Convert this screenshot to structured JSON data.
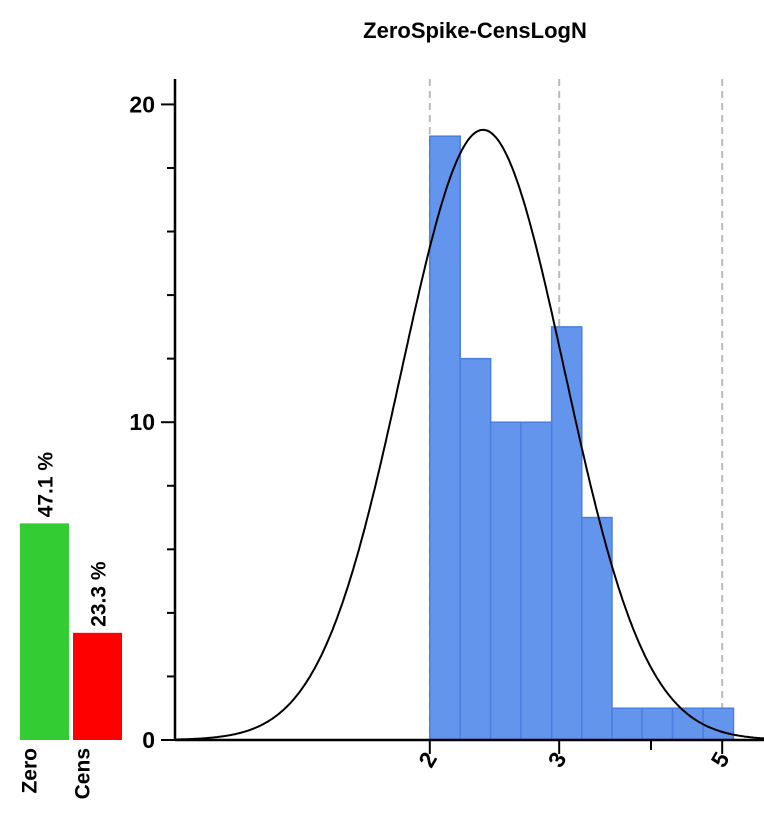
{
  "chart_data": {
    "type": "bar",
    "title": "ZeroSpike-CensLogN",
    "xlabel": "",
    "ylabel": "",
    "grid": true,
    "x_scale": "log",
    "xlim": [
      0.9,
      5.7
    ],
    "ylim": [
      0,
      20.8
    ],
    "y_ticks_major": [
      0,
      10,
      20
    ],
    "y_ticks_minor": [
      2,
      4,
      6,
      8,
      12,
      14,
      16,
      18
    ],
    "x_tick_labels": [
      "2",
      "3",
      "5"
    ],
    "x_ticks_major": [
      2,
      3,
      5
    ],
    "x_ticks_minor": [
      4
    ],
    "gridlines_x": [
      2,
      3,
      5
    ],
    "histogram": {
      "bin_edges": [
        2.0,
        2.2,
        2.42,
        2.66,
        2.93,
        3.22,
        3.54,
        3.89,
        4.28,
        4.71,
        5.18
      ],
      "counts": [
        19,
        12,
        10,
        10,
        13,
        7,
        1,
        1,
        1,
        1
      ],
      "color": "#6495ED",
      "edge_color": "#4A7FE0"
    },
    "fitted_curve": {
      "type": "lognormal-density",
      "log_mean": 0.86,
      "log_sd": 0.255,
      "peak": 19.2,
      "color": "#000000"
    },
    "side_bars": [
      {
        "name": "Zero",
        "label": "Zero",
        "percent_label": "47.1 %",
        "value": 0.471,
        "color": "#33CC33"
      },
      {
        "name": "Cens",
        "label": "Cens",
        "percent_label": "23.3 %",
        "value": 0.233,
        "color": "#FF0000"
      }
    ]
  }
}
